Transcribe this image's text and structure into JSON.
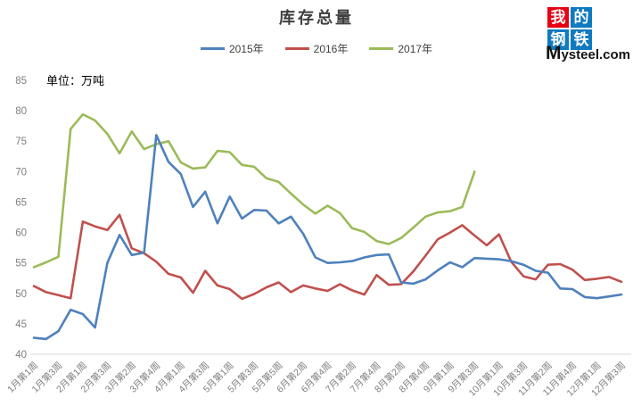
{
  "logo": {
    "chars": [
      "我",
      "的",
      "钢",
      "铁"
    ],
    "brand": "Mysteel.com",
    "red": "#e60012",
    "blue": "#0f7ac0"
  },
  "chart_data": {
    "type": "line",
    "title": "库存总量",
    "ylabel": "单位：万吨",
    "ylim": [
      40,
      85
    ],
    "yticks": [
      40,
      45,
      50,
      55,
      60,
      65,
      70,
      75,
      80,
      85
    ],
    "grid": "off",
    "legend_position": "top",
    "axis_text_color": "#7f7f7f",
    "axis_line_color": "#d9d9d9",
    "x_tick_labels": [
      "1月第1周",
      "1月第3周",
      "2月第1周",
      "2月第3周",
      "3月第2周",
      "3月第4周",
      "4月第1周",
      "4月第3周",
      "5月第1周",
      "5月第3周",
      "5月第5周",
      "6月第2周",
      "6月第4周",
      "7月第2周",
      "7月第4周",
      "8月第2周",
      "8月第4周",
      "9月第1周",
      "9月第3周",
      "10月第1周",
      "10月第3周",
      "11月第2周",
      "11月第4周",
      "12月第1周",
      "12月第3周"
    ],
    "x_tick_every": 2,
    "n_points": 49,
    "series": [
      {
        "name": "2015年",
        "color": "#4F81BD",
        "values": [
          42.7,
          42.5,
          43.8,
          47.3,
          46.6,
          44.4,
          55.0,
          59.6,
          56.3,
          56.7,
          76.0,
          71.6,
          69.6,
          64.2,
          66.7,
          61.5,
          65.9,
          62.3,
          63.7,
          63.6,
          61.5,
          62.6,
          59.8,
          55.9,
          55.0,
          55.1,
          55.3,
          55.9,
          56.3,
          56.4,
          51.8,
          51.6,
          52.3,
          53.8,
          55.1,
          54.3,
          55.8,
          55.7,
          55.6,
          55.3,
          54.7,
          53.7,
          53.4,
          50.8,
          50.7,
          49.4,
          49.2,
          49.5,
          49.8
        ]
      },
      {
        "name": "2016年",
        "color": "#C0504D",
        "values": [
          51.2,
          50.2,
          49.7,
          49.2,
          61.8,
          61.0,
          60.4,
          62.9,
          57.4,
          56.6,
          55.2,
          53.2,
          52.6,
          50.1,
          53.7,
          51.3,
          50.7,
          49.1,
          49.9,
          51.0,
          51.8,
          50.2,
          51.3,
          50.8,
          50.4,
          51.5,
          50.5,
          49.8,
          53.0,
          51.4,
          51.5,
          53.6,
          56.2,
          58.9,
          60.0,
          61.2,
          59.5,
          57.9,
          59.7,
          55.2,
          52.8,
          52.3,
          54.7,
          54.8,
          53.9,
          52.2,
          52.4,
          52.7,
          51.9
        ]
      },
      {
        "name": "2017年",
        "color": "#9BBB59",
        "values": [
          54.3,
          55.1,
          56.0,
          77.0,
          79.4,
          78.4,
          76.2,
          73.0,
          76.6,
          73.7,
          74.5,
          75.0,
          71.5,
          70.5,
          70.7,
          73.4,
          73.2,
          71.1,
          70.8,
          68.9,
          68.3,
          66.4,
          64.6,
          63.1,
          64.4,
          63.2,
          60.7,
          60.1,
          58.6,
          58.1,
          59.1,
          60.8,
          62.6,
          63.3,
          63.5,
          64.2,
          70.0
        ]
      }
    ]
  }
}
